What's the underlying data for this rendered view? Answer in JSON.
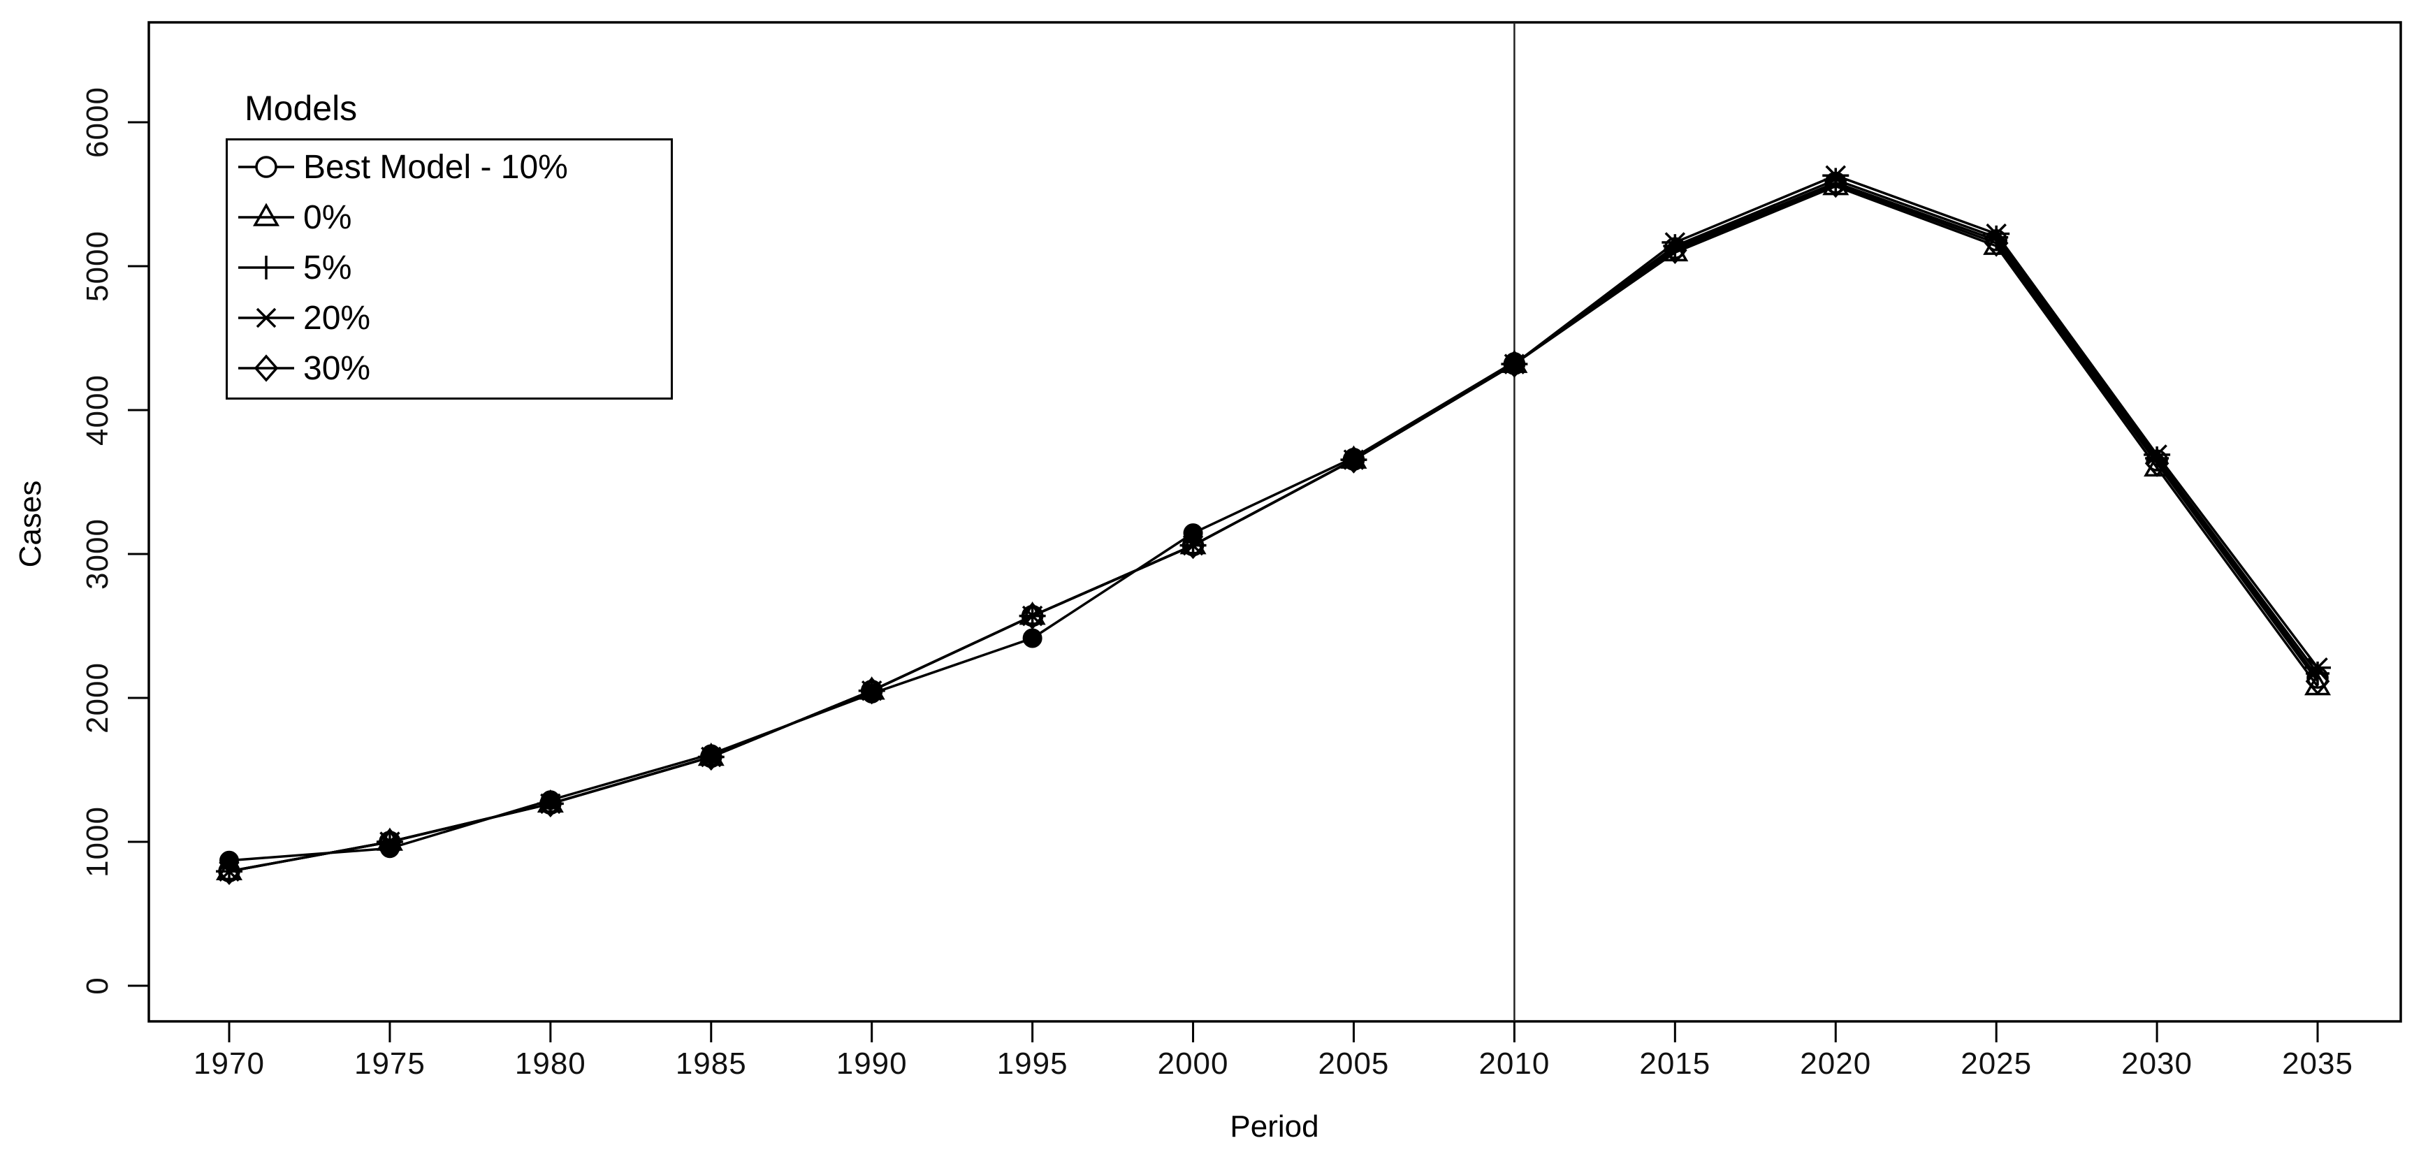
{
  "figure": {
    "background": "#ffffff",
    "ink_color": "#000000",
    "reference_line_color": "#222222"
  },
  "chart_data": {
    "type": "line",
    "title": "",
    "xlabel": "Period",
    "ylabel": "Cases",
    "x": [
      1970,
      1975,
      1980,
      1985,
      1990,
      1995,
      2000,
      2005,
      2010,
      2015,
      2020,
      2025,
      2030,
      2035
    ],
    "x_tick_labels": [
      "1970",
      "1975",
      "1980",
      "1985",
      "1990",
      "1995",
      "2000",
      "2005",
      "2010",
      "2015",
      "2020",
      "2025",
      "2030",
      "2035"
    ],
    "y_ticks": [
      0,
      1000,
      2000,
      3000,
      4000,
      5000,
      6000
    ],
    "y_tick_labels": [
      "0",
      "1000",
      "2000",
      "3000",
      "4000",
      "5000",
      "6000"
    ],
    "xlim": [
      1967.5,
      2037.6
    ],
    "ylim": [
      -250,
      6700
    ],
    "grid": false,
    "reference_line_x": 2010,
    "legend": {
      "title": "Models",
      "position": "top-left",
      "items": [
        {
          "label": "Best Model - 10%",
          "marker": "circle"
        },
        {
          "label": "0%",
          "marker": "triangle"
        },
        {
          "label": "5%",
          "marker": "plus"
        },
        {
          "label": "20%",
          "marker": "star6"
        },
        {
          "label": "30%",
          "marker": "diamond"
        }
      ]
    },
    "series": [
      {
        "name": "Best Model - 10%",
        "marker": "circle",
        "in_legend": true,
        "values": [
          795,
          1000,
          1265,
          1590,
          2050,
          2570,
          3060,
          3655,
          4320,
          5125,
          5580,
          5180,
          3650,
          2140
        ]
      },
      {
        "name": "0%",
        "marker": "triangle",
        "in_legend": true,
        "values": [
          795,
          1000,
          1265,
          1590,
          2050,
          2570,
          3060,
          3655,
          4320,
          5095,
          5555,
          5140,
          3600,
          2080
        ]
      },
      {
        "name": "5%",
        "marker": "plus",
        "in_legend": true,
        "values": [
          795,
          1000,
          1265,
          1590,
          2050,
          2570,
          3060,
          3655,
          4320,
          5140,
          5600,
          5200,
          3665,
          2170
        ]
      },
      {
        "name": "20%",
        "marker": "star6",
        "in_legend": true,
        "values": [
          795,
          1000,
          1265,
          1590,
          2050,
          2570,
          3060,
          3655,
          4320,
          5165,
          5630,
          5225,
          3690,
          2210
        ]
      },
      {
        "name": "30%",
        "marker": "diamond",
        "in_legend": true,
        "values": [
          795,
          1000,
          1265,
          1590,
          2050,
          2570,
          3060,
          3655,
          4320,
          5110,
          5570,
          5160,
          3630,
          2115
        ]
      },
      {
        "name": "observed-data-points",
        "marker": "filled-circle",
        "in_legend": false,
        "values": [
          870,
          955,
          1290,
          1610,
          2030,
          2415,
          3145,
          3670,
          4335,
          null,
          null,
          null,
          null,
          null
        ]
      }
    ]
  }
}
